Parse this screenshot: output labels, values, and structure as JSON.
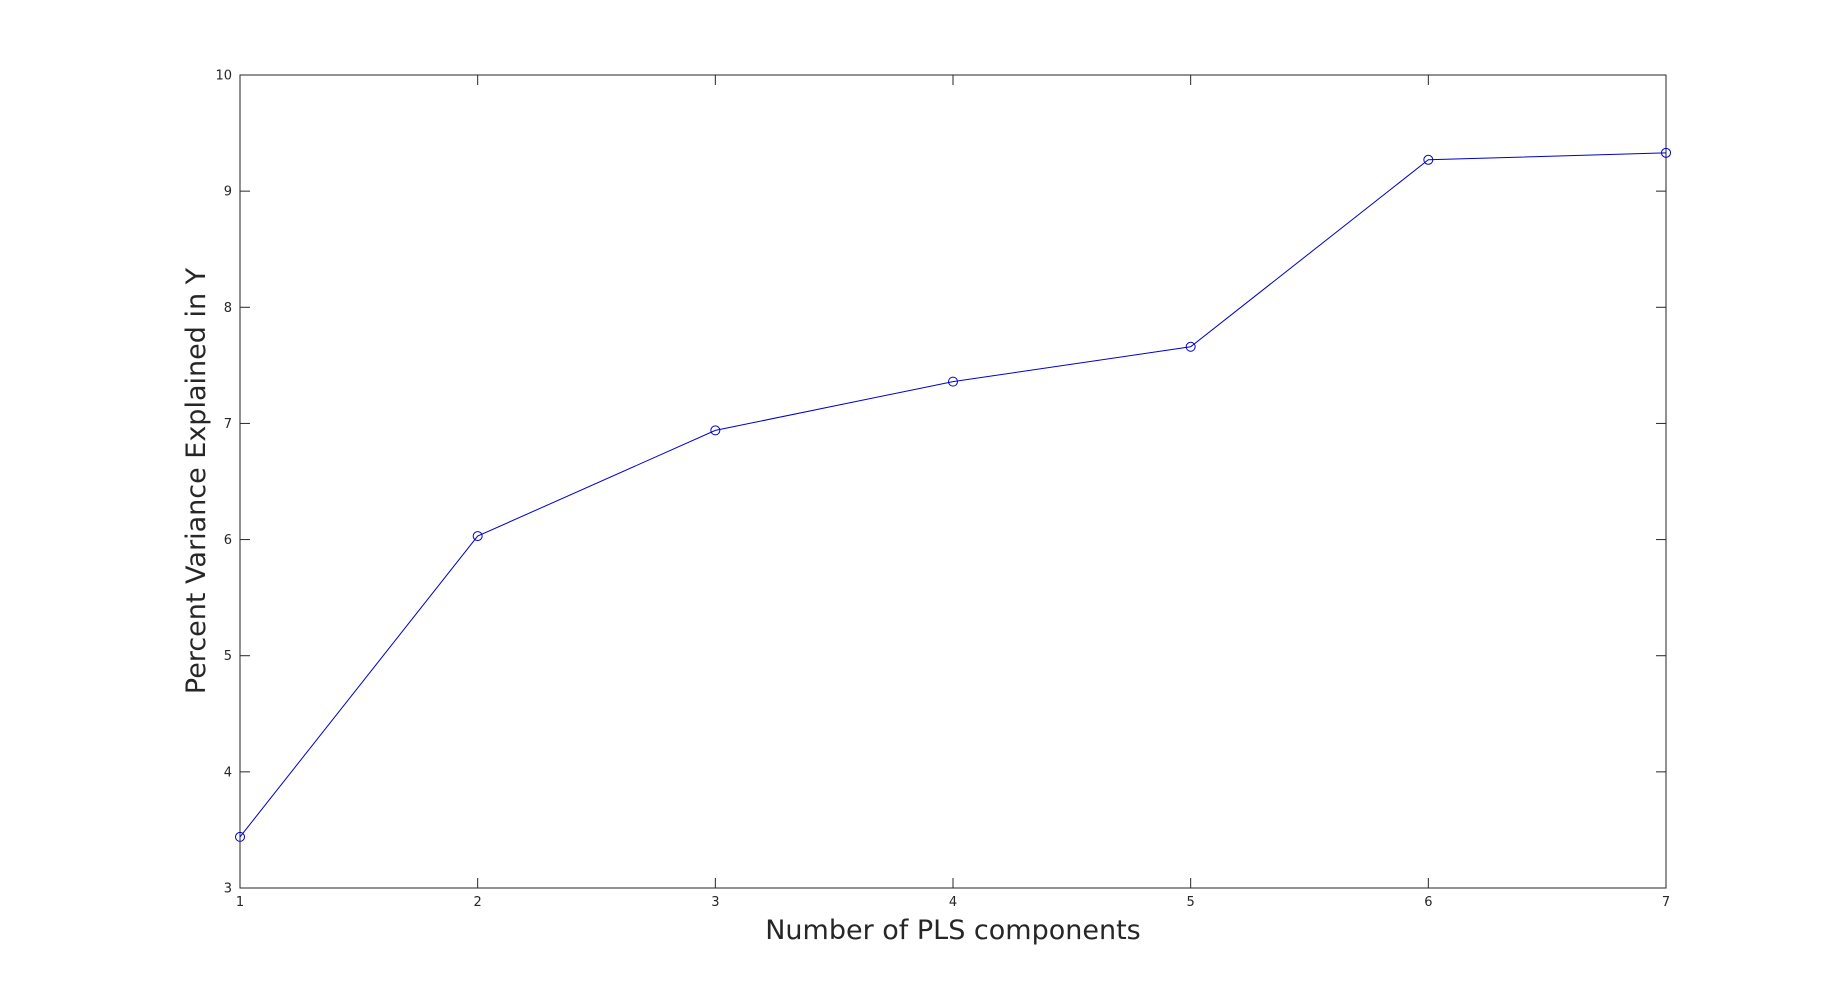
{
  "chart_data": {
    "type": "line",
    "title": "",
    "xlabel": "Number of PLS components",
    "ylabel": "Percent Variance Explained in Y",
    "xlim": [
      1,
      7
    ],
    "ylim": [
      3,
      10
    ],
    "x_ticks": [
      "1",
      "2",
      "3",
      "4",
      "5",
      "6",
      "7"
    ],
    "y_ticks": [
      "3",
      "4",
      "5",
      "6",
      "7",
      "8",
      "9",
      "10"
    ],
    "grid": false,
    "series": [
      {
        "x": [
          1,
          2,
          3,
          4,
          5,
          6,
          7
        ],
        "values": [
          3.44,
          6.03,
          6.94,
          7.36,
          7.66,
          9.27,
          9.33
        ],
        "color": "#0000c8",
        "marker": "circle"
      }
    ]
  }
}
